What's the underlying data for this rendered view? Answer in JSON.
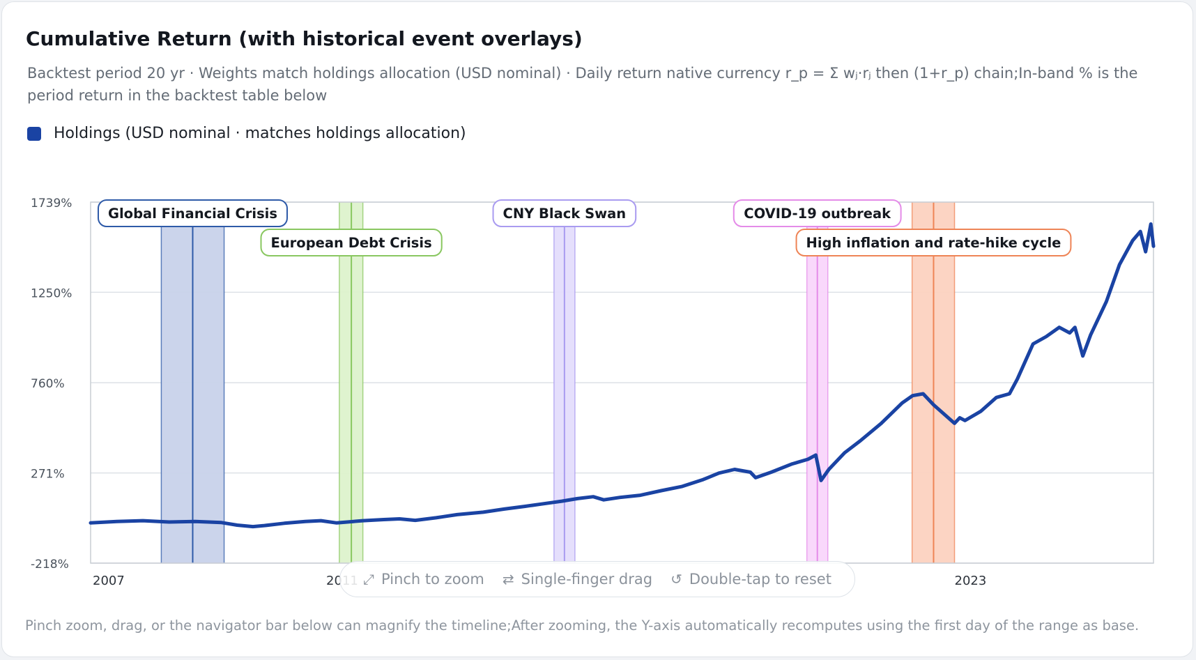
{
  "card": {
    "title": "Cumulative Return (with historical event overlays)",
    "subtitle": "Backtest period 20 yr · Weights match holdings allocation (USD nominal) · Daily return native currency r_p = Σ wⱼ·rⱼ then (1+r_p) chain;In-band % is the period return in the backtest table below",
    "footnote": "Pinch zoom, drag, or the navigator bar below can magnify the timeline;After zooming, the Y-axis automatically recomputes using the first day of the range as base."
  },
  "hints": {
    "pinch": "Pinch to zoom",
    "drag": "Single-finger drag",
    "reset": "Double-tap to reset"
  },
  "icons": {
    "pinch": "expand-icon",
    "drag": "swap-arrows-icon",
    "reset": "rotate-ccw-icon"
  },
  "chart_data": {
    "type": "line",
    "title": "Cumulative Return (with historical event overlays)",
    "xlim": [
      2006.3,
      2026.6
    ],
    "ylim": [
      -218,
      1739
    ],
    "y_ticks": [
      {
        "value": 1739,
        "label": "1739%"
      },
      {
        "value": 1250,
        "label": "1250%"
      },
      {
        "value": 760,
        "label": "760%"
      },
      {
        "value": 271,
        "label": "271%"
      },
      {
        "value": -218,
        "label": "-218%"
      }
    ],
    "x_ticks": [
      {
        "value": 2006.3,
        "label": "2007"
      },
      {
        "value": 2010.8,
        "label": "2011"
      },
      {
        "value": 2022.8,
        "label": "2023"
      }
    ],
    "grid": true,
    "legend_position": "top-left",
    "series": [
      {
        "name": "Holdings (USD nominal · matches holdings allocation)",
        "color": "#1a43a3",
        "points": [
          [
            2006.3,
            0
          ],
          [
            2006.8,
            8
          ],
          [
            2007.3,
            12
          ],
          [
            2007.8,
            5
          ],
          [
            2008.3,
            8
          ],
          [
            2008.8,
            2
          ],
          [
            2009.1,
            -12
          ],
          [
            2009.4,
            -20
          ],
          [
            2009.6,
            -15
          ],
          [
            2010.0,
            -2
          ],
          [
            2010.4,
            8
          ],
          [
            2010.7,
            12
          ],
          [
            2011.0,
            0
          ],
          [
            2011.5,
            12
          ],
          [
            2011.9,
            18
          ],
          [
            2012.2,
            22
          ],
          [
            2012.5,
            14
          ],
          [
            2012.9,
            28
          ],
          [
            2013.3,
            45
          ],
          [
            2013.8,
            58
          ],
          [
            2014.2,
            75
          ],
          [
            2014.6,
            90
          ],
          [
            2014.9,
            102
          ],
          [
            2015.3,
            118
          ],
          [
            2015.6,
            132
          ],
          [
            2015.9,
            142
          ],
          [
            2016.1,
            125
          ],
          [
            2016.4,
            138
          ],
          [
            2016.8,
            150
          ],
          [
            2017.2,
            175
          ],
          [
            2017.6,
            198
          ],
          [
            2018.0,
            235
          ],
          [
            2018.3,
            270
          ],
          [
            2018.6,
            290
          ],
          [
            2018.9,
            275
          ],
          [
            2019.0,
            245
          ],
          [
            2019.3,
            275
          ],
          [
            2019.7,
            320
          ],
          [
            2020.0,
            345
          ],
          [
            2020.15,
            368
          ],
          [
            2020.25,
            230
          ],
          [
            2020.4,
            290
          ],
          [
            2020.7,
            380
          ],
          [
            2021.0,
            445
          ],
          [
            2021.4,
            540
          ],
          [
            2021.8,
            650
          ],
          [
            2022.0,
            690
          ],
          [
            2022.2,
            700
          ],
          [
            2022.4,
            640
          ],
          [
            2022.6,
            590
          ],
          [
            2022.8,
            540
          ],
          [
            2022.9,
            570
          ],
          [
            2023.0,
            555
          ],
          [
            2023.3,
            605
          ],
          [
            2023.6,
            680
          ],
          [
            2023.85,
            700
          ],
          [
            2024.0,
            780
          ],
          [
            2024.3,
            970
          ],
          [
            2024.55,
            1010
          ],
          [
            2024.8,
            1060
          ],
          [
            2025.0,
            1030
          ],
          [
            2025.1,
            1060
          ],
          [
            2025.25,
            905
          ],
          [
            2025.4,
            1020
          ],
          [
            2025.7,
            1200
          ],
          [
            2025.95,
            1400
          ],
          [
            2026.2,
            1530
          ],
          [
            2026.35,
            1580
          ],
          [
            2026.45,
            1470
          ],
          [
            2026.55,
            1620
          ],
          [
            2026.6,
            1500
          ]
        ]
      }
    ],
    "event_bands": [
      {
        "label": "Global Financial Crisis",
        "start": 2007.65,
        "end": 2008.85,
        "mid": 2008.25,
        "color": "#2e5aa8",
        "fill": "#c8d2ea",
        "row": 0
      },
      {
        "label": "European Debt Crisis",
        "start": 2011.05,
        "end": 2011.5,
        "mid": 2011.28,
        "color": "#89c760",
        "fill": "#ddf2cc",
        "row": 1
      },
      {
        "label": "CNY Black Swan",
        "start": 2015.15,
        "end": 2015.55,
        "mid": 2015.35,
        "color": "#a99bf0",
        "fill": "#e4ddfc",
        "row": 0
      },
      {
        "label": "COVID-19 outbreak",
        "start": 2019.98,
        "end": 2020.38,
        "mid": 2020.18,
        "color": "#e48be8",
        "fill": "#f9d6fb",
        "row": 0
      },
      {
        "label": "High inflation and rate-hike cycle",
        "start": 2021.99,
        "end": 2022.8,
        "mid": 2022.4,
        "color": "#ee8456",
        "fill": "#fcd2c0",
        "row": 1
      }
    ]
  }
}
